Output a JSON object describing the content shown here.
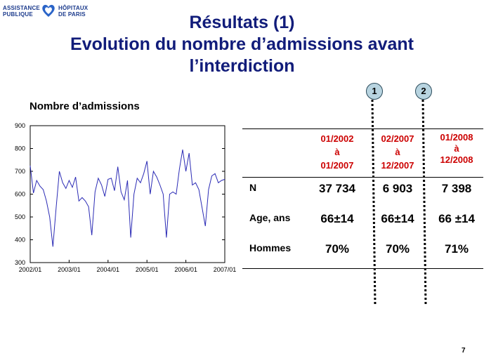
{
  "logo": {
    "left_line1": "ASSISTANCE",
    "left_line2": "PUBLIQUE",
    "right_line1": "HÔPITAUX",
    "right_line2": "DE PARIS"
  },
  "title": {
    "line1": "Résultats (1)",
    "line2": "Evolution du nombre d’admissions avant",
    "line3": "l’interdiction"
  },
  "markers": [
    "1",
    "2"
  ],
  "table": {
    "headers": [
      {
        "line1": "01/2002",
        "line2": "à",
        "line3": "01/2007"
      },
      {
        "line1": "02/2007",
        "line2": "à",
        "line3": "12/2007"
      },
      {
        "line1": "01/2008",
        "line2": "à",
        "line3": "12/2008"
      }
    ],
    "rows": [
      {
        "label": "N",
        "values": [
          "37 734",
          "6 903",
          "7 398"
        ]
      },
      {
        "label": "Age, ans",
        "values": [
          "66±14",
          "66±14",
          "66 ±14"
        ]
      },
      {
        "label": "Hommes",
        "values": [
          "70%",
          "70%",
          "71%"
        ]
      }
    ]
  },
  "page_number": "7",
  "colors": {
    "title": "#111c7a",
    "header_red": "#cc0000",
    "series": "#2b2bb5",
    "marker_fill": "#b8d4e0"
  },
  "chart_data": {
    "type": "line",
    "title": "Nombre d’admissions",
    "xlabel": "",
    "ylabel": "",
    "ylim": [
      300,
      900
    ],
    "yticks": [
      300,
      400,
      500,
      600,
      700,
      800,
      900
    ],
    "xticks": [
      "2002/01",
      "2003/01",
      "2004/01",
      "2005/01",
      "2006/01",
      "2007/01"
    ],
    "grid": false,
    "series": [
      {
        "name": "",
        "start": "2002/01",
        "end": "2007/01",
        "frequency": "monthly",
        "values": [
          725,
          605,
          660,
          635,
          620,
          570,
          500,
          370,
          540,
          700,
          650,
          625,
          660,
          630,
          675,
          570,
          585,
          570,
          545,
          420,
          610,
          670,
          640,
          590,
          665,
          670,
          615,
          720,
          610,
          575,
          660,
          410,
          600,
          670,
          650,
          690,
          745,
          600,
          700,
          675,
          640,
          600,
          410,
          600,
          610,
          600,
          710,
          795,
          700,
          780,
          640,
          650,
          620,
          540,
          460,
          620,
          680,
          690,
          650,
          660,
          665
        ]
      }
    ]
  }
}
